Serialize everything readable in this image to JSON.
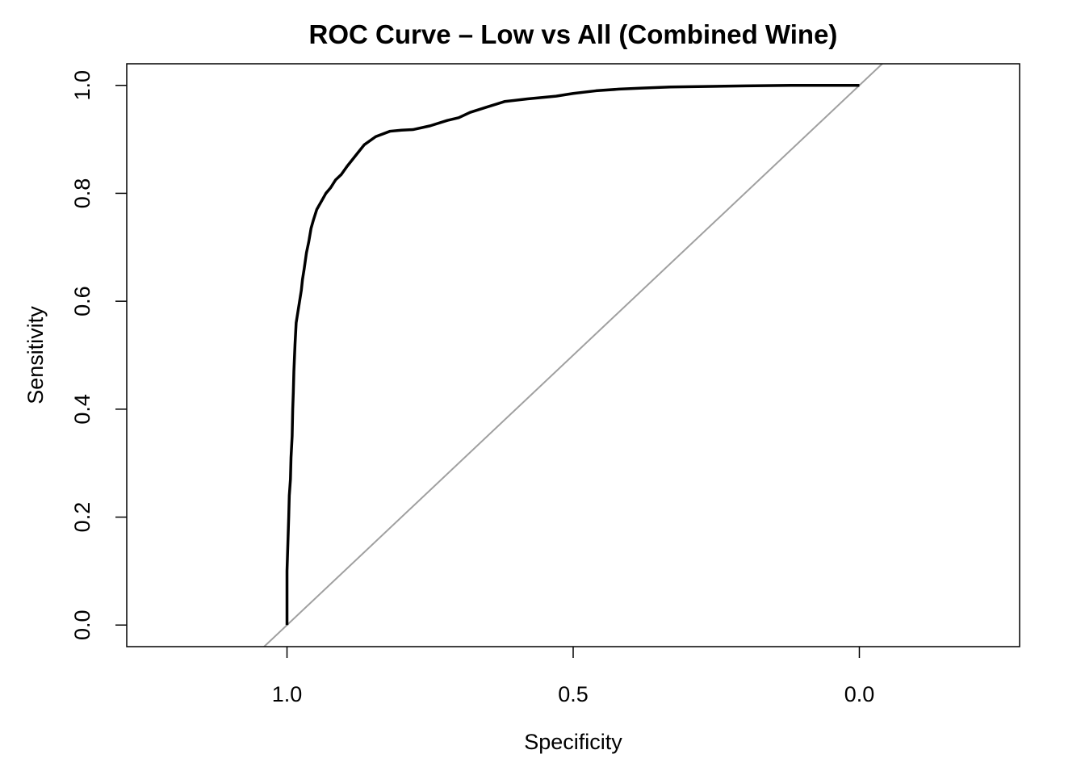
{
  "chart_data": {
    "type": "line",
    "title": "ROC Curve – Low vs All (Combined Wine)",
    "xlabel": "Specificity",
    "ylabel": "Sensitivity",
    "x_reversed": true,
    "xlim": [
      1.28,
      -0.28
    ],
    "ylim": [
      -0.04,
      1.04
    ],
    "x_ticks": [
      {
        "value": 1.0,
        "label": "1.0"
      },
      {
        "value": 0.5,
        "label": "0.5"
      },
      {
        "value": 0.0,
        "label": "0.0"
      }
    ],
    "y_ticks": [
      {
        "value": 0.0,
        "label": "0.0"
      },
      {
        "value": 0.2,
        "label": "0.2"
      },
      {
        "value": 0.4,
        "label": "0.4"
      },
      {
        "value": 0.6,
        "label": "0.6"
      },
      {
        "value": 0.8,
        "label": "0.8"
      },
      {
        "value": 1.0,
        "label": "1.0"
      }
    ],
    "grid": false,
    "series": [
      {
        "color": "#000000",
        "x": [
          1.0,
          1.0,
          0.997,
          0.996,
          0.994,
          0.993,
          0.991,
          0.99,
          0.989,
          0.988,
          0.986,
          0.984,
          0.981,
          0.978,
          0.975,
          0.973,
          0.97,
          0.966,
          0.962,
          0.958,
          0.954,
          0.948,
          0.94,
          0.932,
          0.924,
          0.915,
          0.905,
          0.895,
          0.88,
          0.865,
          0.845,
          0.82,
          0.8,
          0.78,
          0.75,
          0.72,
          0.7,
          0.68,
          0.65,
          0.62,
          0.58,
          0.53,
          0.5,
          0.46,
          0.42,
          0.38,
          0.33,
          0.27,
          0.2,
          0.12,
          0.05,
          0.0
        ],
        "y": [
          0.0,
          0.1,
          0.2,
          0.24,
          0.27,
          0.31,
          0.35,
          0.4,
          0.43,
          0.47,
          0.52,
          0.56,
          0.58,
          0.6,
          0.62,
          0.64,
          0.66,
          0.69,
          0.71,
          0.735,
          0.75,
          0.77,
          0.785,
          0.8,
          0.81,
          0.825,
          0.835,
          0.85,
          0.87,
          0.89,
          0.905,
          0.915,
          0.917,
          0.918,
          0.925,
          0.935,
          0.94,
          0.95,
          0.96,
          0.97,
          0.975,
          0.98,
          0.985,
          0.99,
          0.993,
          0.995,
          0.997,
          0.998,
          0.999,
          1.0,
          1.0,
          1.0
        ]
      }
    ],
    "reference_line": {
      "color": "#a0a0a0",
      "from": [
        1.0,
        0.0
      ],
      "to": [
        0.0,
        1.0
      ]
    }
  }
}
